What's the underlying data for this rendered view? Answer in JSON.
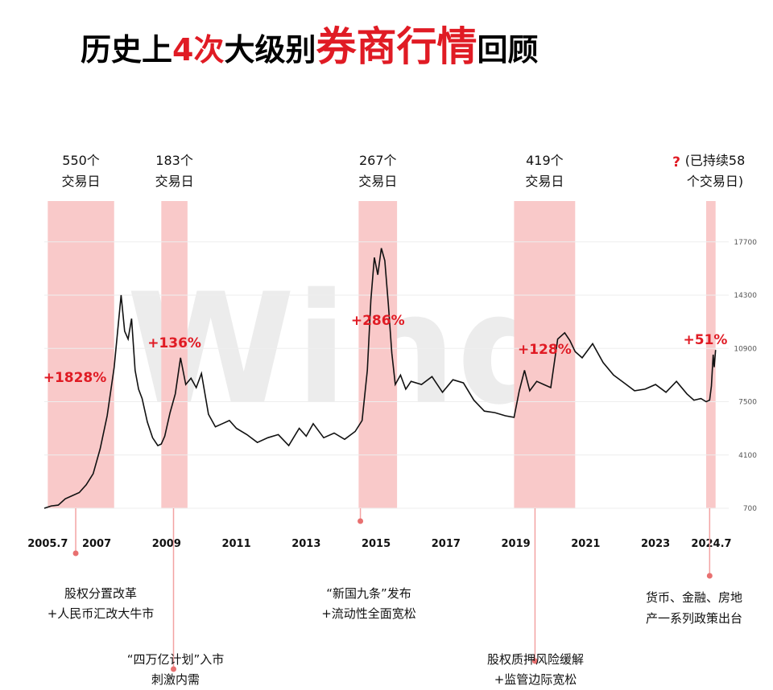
{
  "title_parts": {
    "p1": "历史上",
    "p2": "4次",
    "p3": "大级别",
    "p4": "券商行情",
    "p5": "回顾"
  },
  "watermark": "Wind",
  "colors": {
    "accent": "#e01b24",
    "band": "#f9c9c9",
    "line": "#111111"
  },
  "chart_data": {
    "type": "line",
    "title": "历史上4次大级别券商行情回顾",
    "yticks": [
      700,
      4100,
      7500,
      10900,
      14300,
      17700
    ],
    "ylim": [
      700,
      19000
    ],
    "xlim": [
      2005.5,
      2024.75
    ],
    "xticks": [
      "2005.7",
      "2007",
      "2009",
      "2011",
      "2013",
      "2015",
      "2017",
      "2019",
      "2021",
      "2023",
      "2024.7"
    ],
    "xtick_positions": [
      2005.6,
      2007.0,
      2009.0,
      2011.0,
      2013.0,
      2015.0,
      2017.0,
      2019.0,
      2021.0,
      2023.0,
      2024.6
    ],
    "series": [
      {
        "x": [
          2005.5,
          2005.7,
          2005.9,
          2006.1,
          2006.3,
          2006.5,
          2006.7,
          2006.9,
          2007.1,
          2007.3,
          2007.5,
          2007.6,
          2007.7,
          2007.8,
          2007.9,
          2008.0,
          2008.1,
          2008.2,
          2008.3,
          2008.45,
          2008.6,
          2008.75,
          2008.85,
          2008.95,
          2009.1,
          2009.25,
          2009.4,
          2009.55,
          2009.7,
          2009.85,
          2010.0,
          2010.2,
          2010.4,
          2010.6,
          2010.8,
          2011.0,
          2011.3,
          2011.6,
          2011.9,
          2012.2,
          2012.5,
          2012.8,
          2013.0,
          2013.2,
          2013.5,
          2013.8,
          2014.1,
          2014.4,
          2014.6,
          2014.75,
          2014.85,
          2014.95,
          2015.05,
          2015.15,
          2015.25,
          2015.35,
          2015.45,
          2015.55,
          2015.7,
          2015.85,
          2016.0,
          2016.3,
          2016.6,
          2016.9,
          2017.2,
          2017.5,
          2017.8,
          2018.1,
          2018.4,
          2018.7,
          2018.95,
          2019.1,
          2019.25,
          2019.4,
          2019.6,
          2019.8,
          2020.0,
          2020.2,
          2020.4,
          2020.55,
          2020.7,
          2020.9,
          2021.2,
          2021.5,
          2021.8,
          2022.1,
          2022.4,
          2022.7,
          2023.0,
          2023.3,
          2023.6,
          2023.9,
          2024.1,
          2024.3,
          2024.45,
          2024.55,
          2024.6,
          2024.65,
          2024.68,
          2024.72
        ],
        "y": [
          700,
          850,
          900,
          1300,
          1500,
          1700,
          2200,
          2900,
          4500,
          6600,
          9700,
          12000,
          14300,
          12000,
          11500,
          12800,
          9500,
          8300,
          7700,
          6200,
          5200,
          4700,
          4800,
          5300,
          6800,
          8000,
          10300,
          8600,
          9000,
          8400,
          9300,
          6700,
          5900,
          6100,
          6300,
          5800,
          5400,
          4900,
          5200,
          5400,
          4700,
          5800,
          5300,
          6100,
          5200,
          5500,
          5100,
          5600,
          6300,
          9500,
          14000,
          16700,
          15600,
          17300,
          16500,
          13700,
          10600,
          8600,
          9200,
          8300,
          8800,
          8600,
          9100,
          8100,
          8900,
          8700,
          7600,
          6900,
          6800,
          6600,
          6500,
          8200,
          9500,
          8200,
          8800,
          8600,
          8400,
          11500,
          11900,
          11400,
          10700,
          10300,
          11200,
          10000,
          9200,
          8700,
          8200,
          8300,
          8600,
          8100,
          8800,
          8000,
          7600,
          7700,
          7500,
          7600,
          8500,
          10500,
          9700,
          10800
        ]
      }
    ],
    "bands": [
      {
        "x0": 2005.6,
        "x1": 2007.5,
        "days_label": "550个\n交易日",
        "gain": "+1828%"
      },
      {
        "x0": 2008.85,
        "x1": 2009.6,
        "days_label": "183个\n交易日",
        "gain": "+136%"
      },
      {
        "x0": 2014.5,
        "x1": 2015.6,
        "days_label": "267个\n交易日",
        "gain": "+286%"
      },
      {
        "x0": 2018.95,
        "x1": 2020.7,
        "days_label": "419个\n交易日",
        "gain": "+128%"
      },
      {
        "x0": 2024.45,
        "x1": 2024.72,
        "days_label": "(已持续58\n个交易日)",
        "gain": "+51%",
        "question_mark": "?"
      }
    ],
    "catalysts": [
      {
        "x": 2006.4,
        "text": "股权分置改革\n+人民币汇改大牛市"
      },
      {
        "x": 2009.2,
        "text": "“四万亿计划”入市\n刺激内需"
      },
      {
        "x": 2014.55,
        "text": "“新国九条”发布\n+流动性全面宽松"
      },
      {
        "x": 2019.55,
        "text": "股权质押风险缓解\n+监管边际宽松"
      },
      {
        "x": 2024.55,
        "text": "货币、金融、房地\n产一系列政策出台"
      }
    ]
  }
}
